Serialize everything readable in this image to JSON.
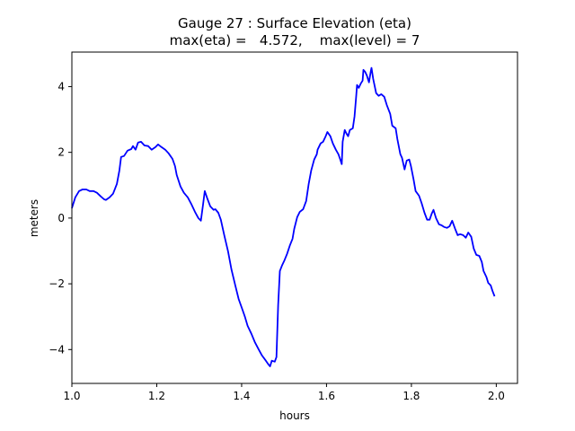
{
  "chart_data": {
    "type": "line",
    "title": "Gauge 27 : Surface Elevation (eta)",
    "subtitle": "max(eta) =   4.572,    max(level) = 7",
    "xlabel": "hours",
    "ylabel": "meters",
    "xlim": [
      1.0,
      2.05
    ],
    "ylim": [
      -5.03,
      5.05
    ],
    "xticks": [
      1.0,
      1.2,
      1.4,
      1.6,
      1.8,
      2.0
    ],
    "xtick_labels": [
      "1.0",
      "1.2",
      "1.4",
      "1.6",
      "1.8",
      "2.0"
    ],
    "yticks": [
      -4,
      -2,
      0,
      2,
      4
    ],
    "ytick_labels": [
      "−4",
      "−2",
      "0",
      "2",
      "4"
    ],
    "grid": false,
    "series": [
      {
        "name": "eta",
        "color": "#0000ff",
        "x": [
          1.0,
          1.008,
          1.017,
          1.025,
          1.034,
          1.042,
          1.051,
          1.059,
          1.068,
          1.076,
          1.08,
          1.089,
          1.097,
          1.106,
          1.112,
          1.116,
          1.123,
          1.131,
          1.14,
          1.144,
          1.15,
          1.156,
          1.163,
          1.171,
          1.18,
          1.188,
          1.197,
          1.203,
          1.211,
          1.22,
          1.228,
          1.237,
          1.243,
          1.247,
          1.256,
          1.264,
          1.273,
          1.281,
          1.29,
          1.298,
          1.304,
          1.309,
          1.313,
          1.319,
          1.326,
          1.334,
          1.338,
          1.345,
          1.351,
          1.359,
          1.368,
          1.376,
          1.385,
          1.393,
          1.402,
          1.408,
          1.414,
          1.423,
          1.431,
          1.44,
          1.448,
          1.457,
          1.463,
          1.467,
          1.471,
          1.478,
          1.482,
          1.486,
          1.49,
          1.495,
          1.501,
          1.507,
          1.514,
          1.52,
          1.524,
          1.531,
          1.537,
          1.545,
          1.552,
          1.558,
          1.564,
          1.571,
          1.577,
          1.579,
          1.586,
          1.592,
          1.598,
          1.602,
          1.609,
          1.615,
          1.622,
          1.628,
          1.632,
          1.636,
          1.638,
          1.643,
          1.647,
          1.651,
          1.655,
          1.662,
          1.666,
          1.67,
          1.672,
          1.676,
          1.681,
          1.685,
          1.687,
          1.691,
          1.695,
          1.7,
          1.704,
          1.706,
          1.71,
          1.717,
          1.723,
          1.729,
          1.736,
          1.742,
          1.75,
          1.755,
          1.763,
          1.767,
          1.774,
          1.778,
          1.784,
          1.789,
          1.795,
          1.799,
          1.805,
          1.81,
          1.818,
          1.824,
          1.831,
          1.837,
          1.843,
          1.848,
          1.852,
          1.858,
          1.865,
          1.871,
          1.877,
          1.884,
          1.89,
          1.896,
          1.903,
          1.909,
          1.915,
          1.922,
          1.928,
          1.934,
          1.941,
          1.947,
          1.953,
          1.96,
          1.966,
          1.97,
          1.977,
          1.981,
          1.987,
          1.991,
          1.996
        ],
        "y": [
          0.3,
          0.63,
          0.82,
          0.87,
          0.87,
          0.82,
          0.82,
          0.77,
          0.66,
          0.57,
          0.55,
          0.63,
          0.74,
          1.04,
          1.45,
          1.86,
          1.89,
          2.05,
          2.1,
          2.19,
          2.08,
          2.3,
          2.32,
          2.21,
          2.19,
          2.08,
          2.16,
          2.24,
          2.16,
          2.08,
          1.97,
          1.8,
          1.58,
          1.31,
          0.96,
          0.77,
          0.63,
          0.44,
          0.19,
          0.0,
          -0.08,
          0.41,
          0.82,
          0.6,
          0.36,
          0.25,
          0.27,
          0.16,
          -0.05,
          -0.52,
          -1.01,
          -1.56,
          -2.05,
          -2.46,
          -2.79,
          -3.01,
          -3.28,
          -3.52,
          -3.77,
          -3.99,
          -4.18,
          -4.34,
          -4.45,
          -4.51,
          -4.34,
          -4.37,
          -4.23,
          -2.65,
          -1.61,
          -1.45,
          -1.28,
          -1.09,
          -0.82,
          -0.63,
          -0.33,
          0.03,
          0.19,
          0.27,
          0.52,
          1.04,
          1.45,
          1.78,
          1.94,
          2.08,
          2.27,
          2.32,
          2.49,
          2.62,
          2.49,
          2.27,
          2.08,
          1.94,
          1.8,
          1.64,
          2.32,
          2.68,
          2.57,
          2.49,
          2.68,
          2.73,
          3.09,
          3.72,
          4.05,
          3.96,
          4.1,
          4.18,
          4.51,
          4.45,
          4.34,
          4.13,
          4.45,
          4.57,
          4.23,
          3.8,
          3.72,
          3.77,
          3.69,
          3.44,
          3.17,
          2.81,
          2.73,
          2.4,
          1.94,
          1.83,
          1.48,
          1.75,
          1.78,
          1.58,
          1.18,
          0.82,
          0.68,
          0.46,
          0.16,
          -0.05,
          -0.05,
          0.14,
          0.25,
          0.0,
          -0.19,
          -0.22,
          -0.27,
          -0.3,
          -0.25,
          -0.08,
          -0.33,
          -0.52,
          -0.49,
          -0.52,
          -0.6,
          -0.44,
          -0.57,
          -0.93,
          -1.12,
          -1.15,
          -1.34,
          -1.61,
          -1.8,
          -1.97,
          -2.05,
          -2.21,
          -2.38
        ]
      }
    ]
  }
}
